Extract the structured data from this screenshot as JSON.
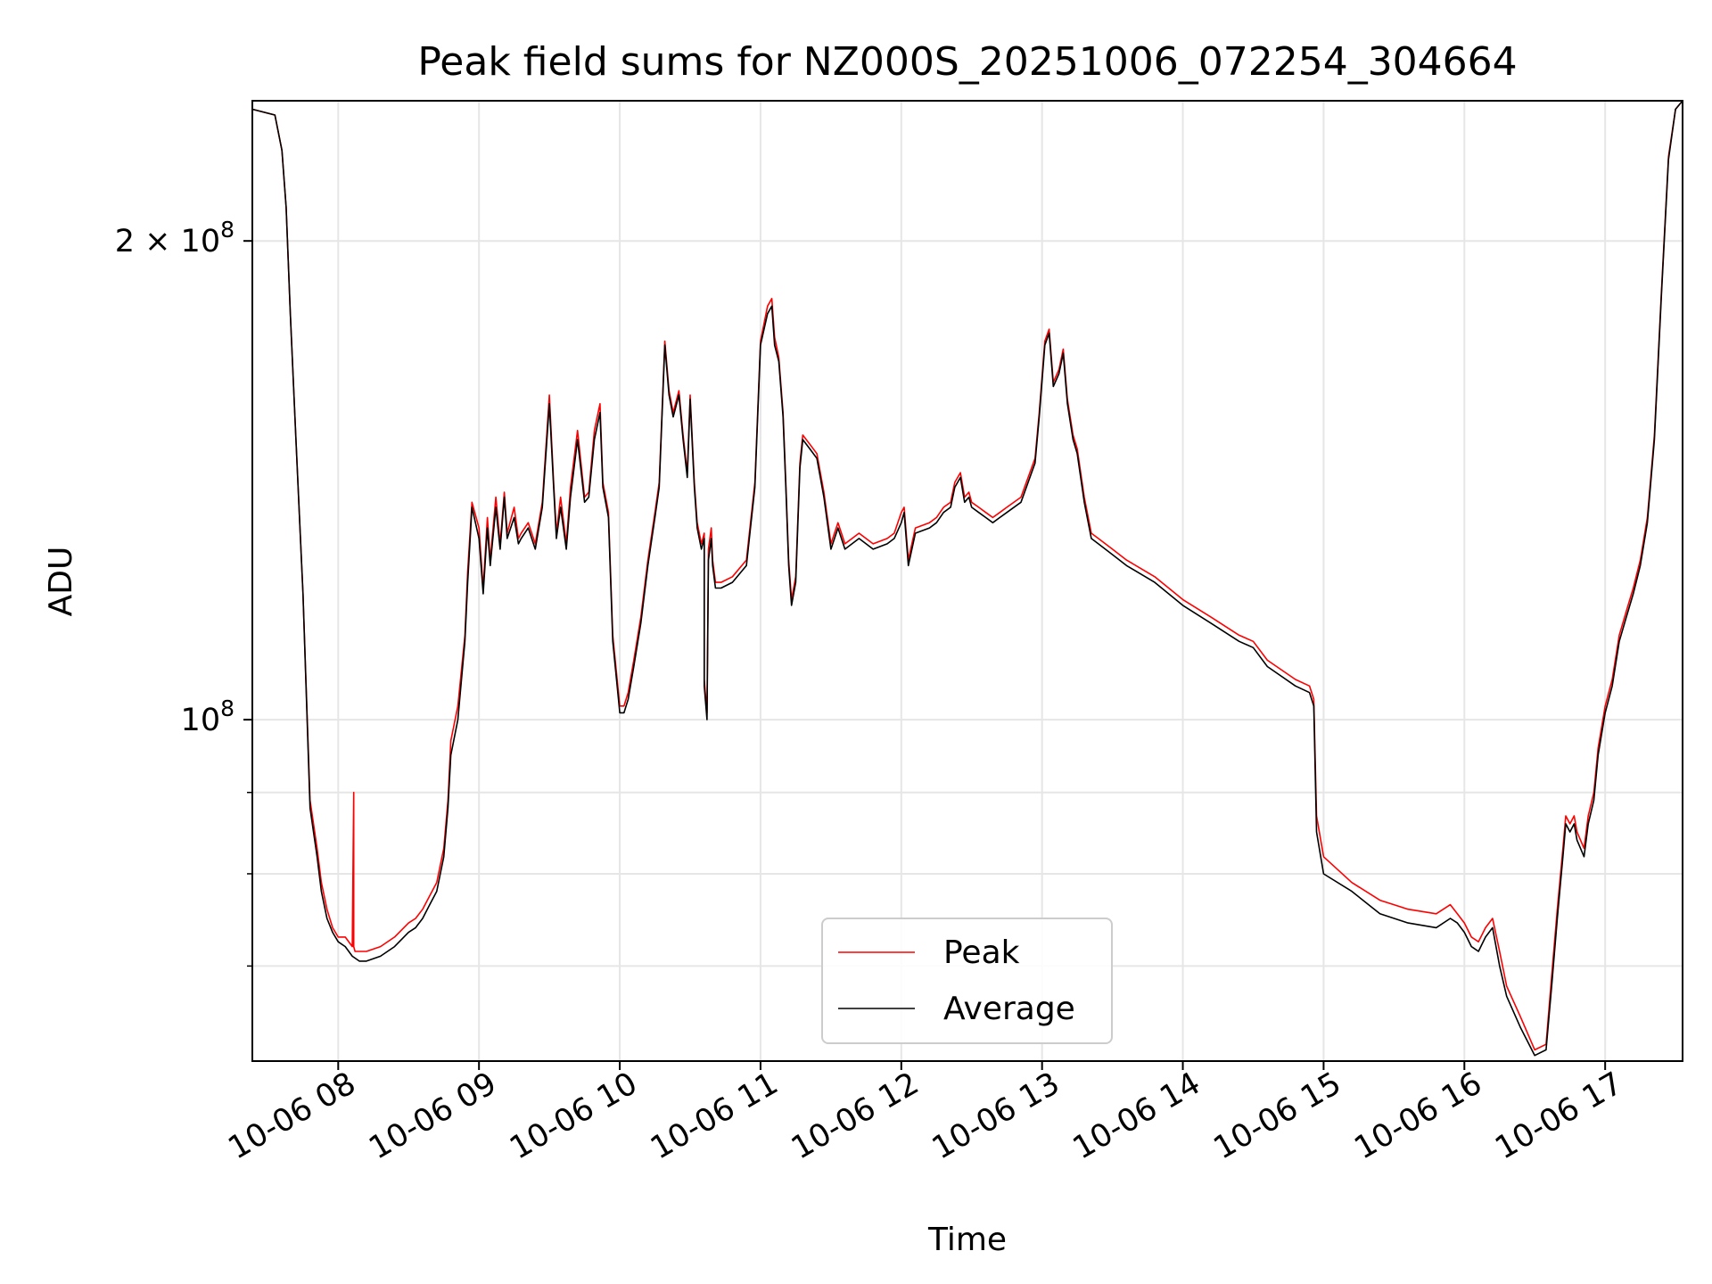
{
  "chart_data": {
    "type": "line",
    "title": "Peak field sums for NZ000S_20251006_072254_304664",
    "xlabel": "Time",
    "ylabel": "ADU",
    "yscale": "log",
    "ylim": [
      61000000,
      245000000
    ],
    "xlim_hours": [
      7.39,
      17.55
    ],
    "x_ticks": [
      {
        "hour": 8,
        "label": "10-06 08"
      },
      {
        "hour": 9,
        "label": "10-06 09"
      },
      {
        "hour": 10,
        "label": "10-06 10"
      },
      {
        "hour": 11,
        "label": "10-06 11"
      },
      {
        "hour": 12,
        "label": "10-06 12"
      },
      {
        "hour": 13,
        "label": "10-06 13"
      },
      {
        "hour": 14,
        "label": "10-06 14"
      },
      {
        "hour": 15,
        "label": "10-06 15"
      },
      {
        "hour": 16,
        "label": "10-06 16"
      },
      {
        "hour": 17,
        "label": "10-06 17"
      }
    ],
    "y_major_ticks": [
      {
        "value": 100000000,
        "base": "10",
        "exp": "8",
        "coef": ""
      },
      {
        "value": 200000000,
        "base": "10",
        "exp": "8",
        "coef": "2 × "
      }
    ],
    "y_minor_ticks": [
      70000000,
      80000000,
      90000000
    ],
    "grid": true,
    "legend": {
      "location": "bottom-center",
      "entries": [
        "Peak",
        "Average"
      ]
    },
    "colors": {
      "Peak": "#ff0000",
      "Average": "#000000",
      "grid": "#e6e6e6"
    },
    "series": [
      {
        "name": "Average",
        "x": [
          7.39,
          7.55,
          7.6,
          7.63,
          7.66,
          7.7,
          7.75,
          7.8,
          7.85,
          7.88,
          7.92,
          7.96,
          8.0,
          8.05,
          8.1,
          8.15,
          8.2,
          8.3,
          8.4,
          8.5,
          8.55,
          8.6,
          8.65,
          8.7,
          8.75,
          8.78,
          8.8,
          8.85,
          8.9,
          8.92,
          8.95,
          9.0,
          9.03,
          9.06,
          9.08,
          9.12,
          9.15,
          9.18,
          9.2,
          9.25,
          9.28,
          9.3,
          9.35,
          9.4,
          9.45,
          9.5,
          9.53,
          9.55,
          9.58,
          9.62,
          9.65,
          9.7,
          9.75,
          9.78,
          9.82,
          9.86,
          9.88,
          9.92,
          9.95,
          10.0,
          10.03,
          10.06,
          10.1,
          10.15,
          10.2,
          10.25,
          10.28,
          10.32,
          10.35,
          10.38,
          10.42,
          10.45,
          10.48,
          10.5,
          10.53,
          10.55,
          10.58,
          10.6,
          10.6,
          10.62,
          10.63,
          10.65,
          10.66,
          10.68,
          10.72,
          10.8,
          10.9,
          10.96,
          11.0,
          11.05,
          11.08,
          11.1,
          11.13,
          11.16,
          11.18,
          11.2,
          11.22,
          11.25,
          11.28,
          11.3,
          11.35,
          11.4,
          11.45,
          11.5,
          11.55,
          11.6,
          11.7,
          11.8,
          11.9,
          11.95,
          12.0,
          12.02,
          12.05,
          12.1,
          12.2,
          12.25,
          12.3,
          12.35,
          12.38,
          12.42,
          12.45,
          12.48,
          12.5,
          12.55,
          12.6,
          12.65,
          12.7,
          12.75,
          12.85,
          12.95,
          12.98,
          13.02,
          13.05,
          13.08,
          13.12,
          13.15,
          13.18,
          13.22,
          13.25,
          13.3,
          13.35,
          13.4,
          13.5,
          13.6,
          13.8,
          14.0,
          14.2,
          14.4,
          14.5,
          14.6,
          14.8,
          14.9,
          14.93,
          14.95,
          15.0,
          15.2,
          15.4,
          15.6,
          15.8,
          15.9,
          15.95,
          16.0,
          16.05,
          16.1,
          16.15,
          16.2,
          16.25,
          16.3,
          16.4,
          16.5,
          16.58,
          16.62,
          16.66,
          16.7,
          16.72,
          16.75,
          16.78,
          16.8,
          16.85,
          16.88,
          16.92,
          16.95,
          17.0,
          17.05,
          17.1,
          17.15,
          17.2,
          17.25,
          17.3,
          17.35,
          17.4,
          17.45,
          17.5,
          17.55
        ],
        "y": [
          242000000,
          240000000,
          228000000,
          210000000,
          180000000,
          150000000,
          120000000,
          88000000,
          82000000,
          78000000,
          75000000,
          73500000,
          72500000,
          72000000,
          71000000,
          70500000,
          70500000,
          71000000,
          72000000,
          73500000,
          74000000,
          75000000,
          76500000,
          78000000,
          82000000,
          88000000,
          95000000,
          100000000,
          112000000,
          122000000,
          136000000,
          130000000,
          120000000,
          132000000,
          125000000,
          136000000,
          128000000,
          138000000,
          130000000,
          134000000,
          129000000,
          130000000,
          132000000,
          128000000,
          136000000,
          158000000,
          140000000,
          130000000,
          136000000,
          128000000,
          138000000,
          150000000,
          137000000,
          138000000,
          150000000,
          156000000,
          140000000,
          134000000,
          112000000,
          101000000,
          101000000,
          103000000,
          108000000,
          115000000,
          125000000,
          134000000,
          140000000,
          172000000,
          160000000,
          155000000,
          160000000,
          150000000,
          142000000,
          159000000,
          140000000,
          132000000,
          128000000,
          130000000,
          105000000,
          100000000,
          126000000,
          130000000,
          125000000,
          121000000,
          121000000,
          122000000,
          125000000,
          140000000,
          172000000,
          180000000,
          182000000,
          172000000,
          168000000,
          155000000,
          140000000,
          125000000,
          118000000,
          122000000,
          144000000,
          150000000,
          148000000,
          146000000,
          138000000,
          128000000,
          132000000,
          128000000,
          130000000,
          128000000,
          129000000,
          130000000,
          133000000,
          135000000,
          125000000,
          131000000,
          132000000,
          133000000,
          135000000,
          136000000,
          140000000,
          142000000,
          137000000,
          138000000,
          136000000,
          135000000,
          134000000,
          133000000,
          134000000,
          135000000,
          137000000,
          145000000,
          155000000,
          172000000,
          175000000,
          162000000,
          165000000,
          170000000,
          158000000,
          150000000,
          147000000,
          137000000,
          130000000,
          129000000,
          127000000,
          125000000,
          122000000,
          118000000,
          115000000,
          112000000,
          111000000,
          108000000,
          105000000,
          104000000,
          102000000,
          85000000,
          80000000,
          78000000,
          75500000,
          74500000,
          74000000,
          75000000,
          74500000,
          73500000,
          72000000,
          71500000,
          73000000,
          74000000,
          70000000,
          67000000,
          64000000,
          61500000,
          62000000,
          68000000,
          75000000,
          82000000,
          86000000,
          85000000,
          86000000,
          84000000,
          82000000,
          86000000,
          89000000,
          95000000,
          101000000,
          105000000,
          112000000,
          116000000,
          120000000,
          125000000,
          133000000,
          150000000,
          185000000,
          225000000,
          242000000,
          245000000
        ]
      },
      {
        "name": "Peak",
        "x": [
          7.39,
          7.55,
          7.6,
          7.63,
          7.66,
          7.7,
          7.75,
          7.8,
          7.85,
          7.88,
          7.92,
          7.96,
          8.0,
          8.05,
          8.1,
          8.11,
          8.11,
          8.12,
          8.15,
          8.2,
          8.3,
          8.4,
          8.5,
          8.55,
          8.6,
          8.65,
          8.7,
          8.75,
          8.78,
          8.8,
          8.85,
          8.9,
          8.92,
          8.95,
          9.0,
          9.03,
          9.06,
          9.08,
          9.12,
          9.15,
          9.18,
          9.2,
          9.25,
          9.28,
          9.3,
          9.35,
          9.4,
          9.45,
          9.5,
          9.53,
          9.55,
          9.58,
          9.62,
          9.65,
          9.7,
          9.75,
          9.78,
          9.82,
          9.86,
          9.88,
          9.92,
          9.95,
          10.0,
          10.03,
          10.06,
          10.1,
          10.15,
          10.2,
          10.25,
          10.28,
          10.32,
          10.35,
          10.38,
          10.42,
          10.45,
          10.48,
          10.5,
          10.53,
          10.55,
          10.58,
          10.6,
          10.6,
          10.62,
          10.63,
          10.65,
          10.66,
          10.68,
          10.72,
          10.8,
          10.9,
          10.96,
          11.0,
          11.05,
          11.08,
          11.1,
          11.13,
          11.16,
          11.18,
          11.2,
          11.22,
          11.25,
          11.28,
          11.3,
          11.35,
          11.4,
          11.45,
          11.5,
          11.55,
          11.6,
          11.7,
          11.8,
          11.9,
          11.95,
          12.0,
          12.02,
          12.05,
          12.1,
          12.2,
          12.25,
          12.3,
          12.35,
          12.38,
          12.42,
          12.45,
          12.48,
          12.5,
          12.55,
          12.6,
          12.65,
          12.7,
          12.75,
          12.85,
          12.95,
          12.98,
          13.02,
          13.05,
          13.08,
          13.12,
          13.15,
          13.18,
          13.22,
          13.25,
          13.3,
          13.35,
          13.4,
          13.5,
          13.6,
          13.8,
          14.0,
          14.2,
          14.4,
          14.5,
          14.6,
          14.8,
          14.9,
          14.93,
          14.95,
          15.0,
          15.2,
          15.4,
          15.6,
          15.8,
          15.9,
          15.95,
          16.0,
          16.05,
          16.1,
          16.15,
          16.2,
          16.25,
          16.3,
          16.4,
          16.5,
          16.58,
          16.62,
          16.66,
          16.7,
          16.72,
          16.75,
          16.78,
          16.8,
          16.85,
          16.88,
          16.92,
          16.95,
          17.0,
          17.05,
          17.1,
          17.15,
          17.2,
          17.25,
          17.3,
          17.35,
          17.4,
          17.45,
          17.5,
          17.55
        ],
        "y": [
          242000000,
          240000000,
          228000000,
          210000000,
          180000000,
          150000000,
          120000000,
          89000000,
          83000000,
          79000000,
          76000000,
          74000000,
          73000000,
          73000000,
          72000000,
          90000000,
          72000000,
          71500000,
          71500000,
          71500000,
          72000000,
          73000000,
          74500000,
          75000000,
          76000000,
          77500000,
          79000000,
          83000000,
          89000000,
          97000000,
          102000000,
          113000000,
          124000000,
          137000000,
          132000000,
          121000000,
          134000000,
          126000000,
          138000000,
          129000000,
          139000000,
          131000000,
          136000000,
          130000000,
          131000000,
          133000000,
          129000000,
          137000000,
          160000000,
          141000000,
          131000000,
          138000000,
          129000000,
          140000000,
          152000000,
          138000000,
          139000000,
          152000000,
          158000000,
          141000000,
          135000000,
          113000000,
          102000000,
          102000000,
          104000000,
          109000000,
          116000000,
          126000000,
          135000000,
          141000000,
          173000000,
          161000000,
          156000000,
          161000000,
          151000000,
          143000000,
          160000000,
          141000000,
          133000000,
          129000000,
          131000000,
          106000000,
          101000000,
          128000000,
          132000000,
          126000000,
          122000000,
          122000000,
          123000000,
          126000000,
          141000000,
          173000000,
          182000000,
          184000000,
          174000000,
          169000000,
          156000000,
          141000000,
          126000000,
          119000000,
          123000000,
          145000000,
          151000000,
          149000000,
          147000000,
          139000000,
          129000000,
          133000000,
          129000000,
          131000000,
          129000000,
          130000000,
          131000000,
          135000000,
          136000000,
          126000000,
          132000000,
          133000000,
          134000000,
          136000000,
          137000000,
          141000000,
          143000000,
          138000000,
          139000000,
          137000000,
          136000000,
          135000000,
          134000000,
          135000000,
          136000000,
          138000000,
          146000000,
          156000000,
          173000000,
          176000000,
          163000000,
          166000000,
          171000000,
          159000000,
          151000000,
          148000000,
          138000000,
          131000000,
          130000000,
          128000000,
          126000000,
          123000000,
          119000000,
          116000000,
          113000000,
          112000000,
          109000000,
          106000000,
          105000000,
          103000000,
          87000000,
          82000000,
          79000000,
          77000000,
          76000000,
          75500000,
          76500000,
          75500000,
          74500000,
          73000000,
          72500000,
          74000000,
          75000000,
          71500000,
          68000000,
          65000000,
          62000000,
          62500000,
          69000000,
          76000000,
          83000000,
          87000000,
          86000000,
          87000000,
          85000000,
          83000000,
          87000000,
          90000000,
          96000000,
          102000000,
          106000000,
          113000000,
          117000000,
          121000000,
          126000000,
          134000000,
          151000000,
          186000000,
          226000000,
          242000000,
          245000000
        ]
      }
    ]
  }
}
